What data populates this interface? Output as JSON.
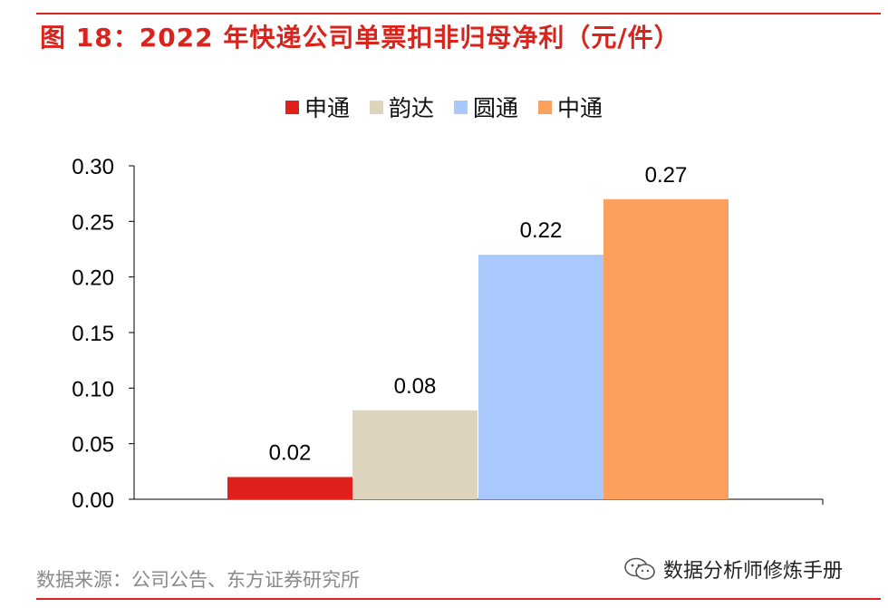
{
  "title": "图 18：2022 年快递公司单票扣非归母净利（元/件）",
  "source": "数据来源：公司公告、东方证券研究所",
  "watermark": {
    "text": "数据分析师修炼手册",
    "icon": "wechat-icon"
  },
  "colors": {
    "accent": "#d9231c",
    "series": [
      "#e0211b",
      "#ddd4bd",
      "#a9c8fb",
      "#fd9f5d"
    ]
  },
  "chart_data": {
    "type": "bar",
    "categories": [
      "申通",
      "韵达",
      "圆通",
      "中通"
    ],
    "values": [
      0.02,
      0.08,
      0.22,
      0.27
    ],
    "value_labels": [
      "0.02",
      "0.08",
      "0.22",
      "0.27"
    ],
    "ylim": [
      0,
      0.3
    ],
    "yticks": [
      "0.00",
      "0.05",
      "0.10",
      "0.15",
      "0.20",
      "0.25",
      "0.30"
    ],
    "legend": [
      "申通",
      "韵达",
      "圆通",
      "中通"
    ],
    "legend_position": "top",
    "grid": false
  }
}
